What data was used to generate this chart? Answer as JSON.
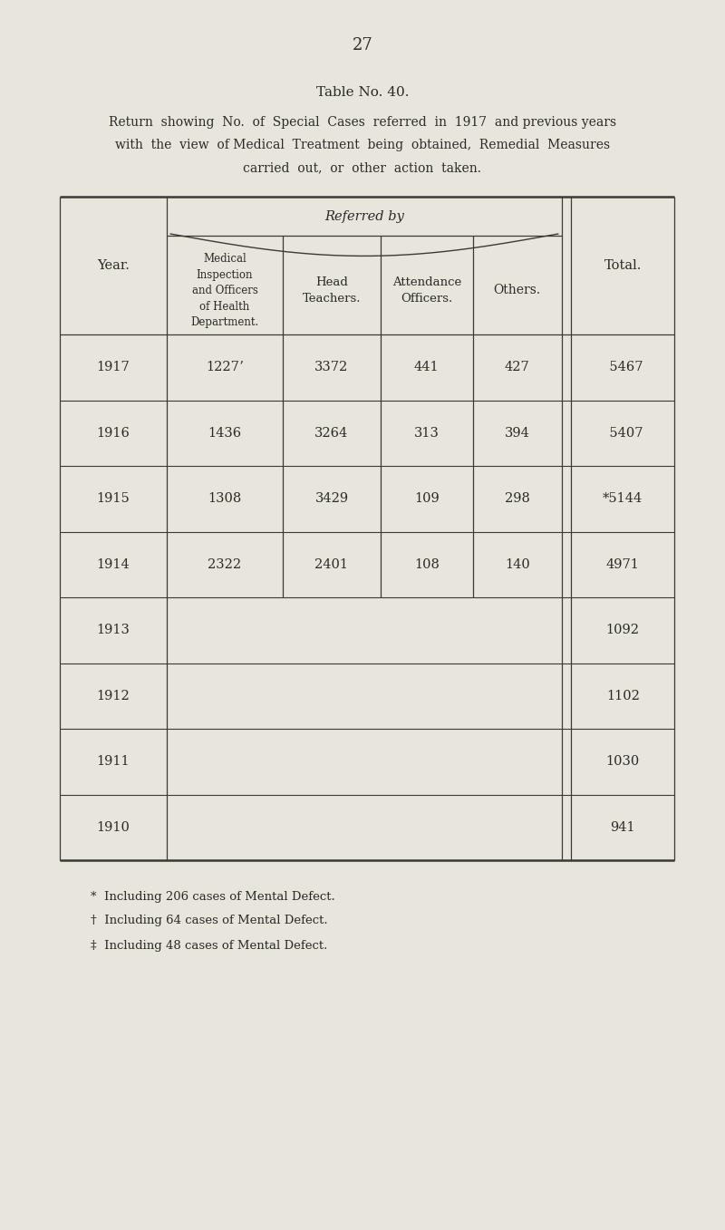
{
  "page_number": "27",
  "table_title": "Table No. 40.",
  "subtitle": [
    "Return  showing  No.  of  Special  Cases  referred  in  1917  and previous years",
    "with  the  view  of Medical  Treatment  being  obtained,  Remedial  Measures",
    "carried  out,  or  other  action  taken."
  ],
  "referred_by": "Referred by",
  "col0_header": "Year.",
  "col1_header": "Medical\nInspection\nand Officers\nof Health\nDepartment.",
  "col2_header": "Head\nTeachers.",
  "col3_header": "Attendance\nOfficers.",
  "col4_header": "Others.",
  "col5_header": "Total.",
  "rows": [
    [
      "1917",
      "1227ʼ",
      "3372",
      "441",
      "427",
      " 5467"
    ],
    [
      "1916",
      "1436",
      "3264",
      "313",
      "394",
      " 5407"
    ],
    [
      "1915",
      "1308",
      "3429",
      "109",
      "298",
      "*5144"
    ],
    [
      "1914",
      "2322",
      "2401",
      "108",
      "140",
      "4971"
    ],
    [
      "1913",
      "",
      "",
      "",
      "",
      "1092"
    ],
    [
      "1912",
      "",
      "",
      "",
      "",
      "1102"
    ],
    [
      "1911",
      "",
      "",
      "",
      "",
      "1030"
    ],
    [
      "1910",
      "",
      "",
      "",
      "",
      "941"
    ]
  ],
  "row_totals": [
    " 5467",
    " 5407",
    "*5144",
    "4971",
    "1092",
    "1102",
    "1030",
    "941"
  ],
  "footnotes": [
    "*  Including 206 cases of Mental Defect.",
    "†  Including 64 cases of Mental Defect.",
    "‡  Including 48 cases of Mental Defect."
  ],
  "bg_color": "#e8e5dc",
  "text_color": "#2a2a2a",
  "line_color": "#3a3a3a",
  "thick_lw": 1.8,
  "thin_lw": 0.8
}
